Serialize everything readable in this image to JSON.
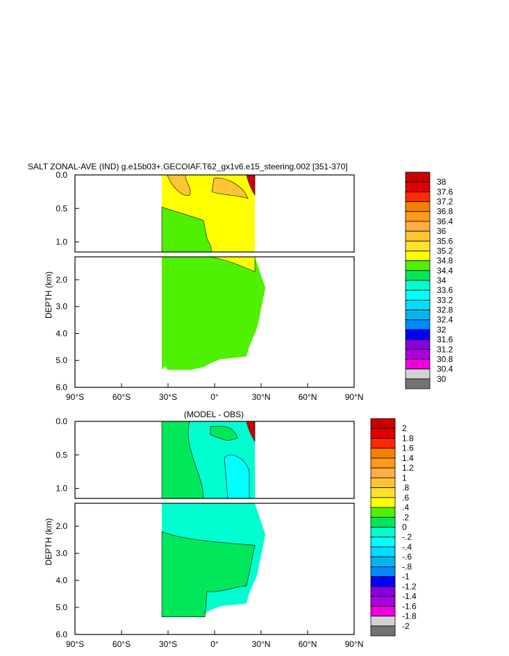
{
  "chart_data": [
    {
      "type": "heatmap",
      "title": "SALT ZONAL-AVE (IND) g.e15b03+.GECOIAF.T62_gx1v6.e15_steering.002 [351-370]",
      "ylabel": "DEPTH (km)",
      "xlabel": "",
      "x_ticks": [
        "90°S",
        "60°S",
        "30°S",
        "0°",
        "30°N",
        "60°N",
        "90°N"
      ],
      "x_tick_values": [
        -90,
        -60,
        -30,
        0,
        30,
        60,
        90
      ],
      "upper_y_ticks": [
        "0.0",
        "0.5",
        "1.0"
      ],
      "upper_y_values": [
        0.0,
        0.5,
        1.0
      ],
      "upper_ylim": [
        0,
        1.15
      ],
      "lower_y_ticks": [
        "2.0",
        "3.0",
        "4.0",
        "5.0",
        "6.0"
      ],
      "lower_y_values": [
        2.0,
        3.0,
        4.0,
        5.0,
        6.0
      ],
      "lower_ylim": [
        1.15,
        6.0
      ],
      "xlim": [
        -90,
        90
      ],
      "data_lat_range": [
        -34,
        26
      ],
      "colorbar": {
        "labels": [
          "38",
          "37.6",
          "37.2",
          "36.8",
          "36.4",
          "36",
          "35.6",
          "35.2",
          "34.8",
          "34.4",
          "34",
          "33.6",
          "33.2",
          "32.8",
          "32.4",
          "32",
          "31.6",
          "31.2",
          "30.8",
          "30.4",
          "30"
        ],
        "colors": [
          "#c80000",
          "#e00000",
          "#ff2a00",
          "#f57f00",
          "#ff9a1a",
          "#ffad47",
          "#ffc433",
          "#ffe030",
          "#ffff00",
          "#4ff000",
          "#00e85a",
          "#00ffd0",
          "#00ffff",
          "#00ddff",
          "#00b4f0",
          "#0088ff",
          "#0000ff",
          "#8800dd",
          "#aa00dd",
          "#ee00dd",
          "#d2d2d2",
          "#737373"
        ]
      },
      "regions": [
        {
          "value_class": "34.8-35.2",
          "color": "#ffff00"
        },
        {
          "value_class": "34.4-34.8",
          "color": "#4ff000"
        },
        {
          "value_class": "35.2-35.6",
          "color": "#ffc433"
        },
        {
          "value_class": ">37.6",
          "color": "#c80000"
        }
      ]
    },
    {
      "type": "heatmap",
      "title": "(MODEL - OBS)",
      "ylabel": "DEPTH (km)",
      "xlabel": "",
      "x_ticks": [
        "90°S",
        "60°S",
        "30°S",
        "0°",
        "30°N",
        "60°N",
        "90°N"
      ],
      "x_tick_values": [
        -90,
        -60,
        -30,
        0,
        30,
        60,
        90
      ],
      "upper_y_ticks": [
        "0.0",
        "0.5",
        "1.0"
      ],
      "upper_y_values": [
        0.0,
        0.5,
        1.0
      ],
      "upper_ylim": [
        0,
        1.15
      ],
      "lower_y_ticks": [
        "2.0",
        "3.0",
        "4.0",
        "5.0",
        "6.0"
      ],
      "lower_y_values": [
        2.0,
        3.0,
        4.0,
        5.0,
        6.0
      ],
      "lower_ylim": [
        1.15,
        6.0
      ],
      "xlim": [
        -90,
        90
      ],
      "data_lat_range": [
        -34,
        26
      ],
      "colorbar": {
        "labels": [
          "2",
          "1.8",
          "1.6",
          "1.4",
          "1.2",
          "1",
          ".8",
          ".6",
          ".4",
          ".2",
          "0",
          "-.2",
          "-.4",
          "-.6",
          "-.8",
          "-1",
          "-1.2",
          "-1.4",
          "-1.6",
          "-1.8",
          "-2"
        ],
        "colors": [
          "#c80000",
          "#e00000",
          "#ff2a00",
          "#f57f00",
          "#ff9a1a",
          "#ffad47",
          "#ffc433",
          "#ffe030",
          "#ffff00",
          "#4ff000",
          "#00e85a",
          "#00ffd0",
          "#00ffff",
          "#00ddff",
          "#00b4f0",
          "#0088ff",
          "#0000ff",
          "#8800dd",
          "#aa00dd",
          "#ee00dd",
          "#d2d2d2",
          "#737373"
        ]
      },
      "regions": [
        {
          "value_class": "0-0.2",
          "color": "#00ffd0"
        },
        {
          "value_class": "0.2-0.4",
          "color": "#00e85a"
        },
        {
          "value_class": "-0.2-0",
          "color": "#00ffff"
        },
        {
          "value_class": ">1.8",
          "color": "#c80000"
        }
      ]
    }
  ]
}
